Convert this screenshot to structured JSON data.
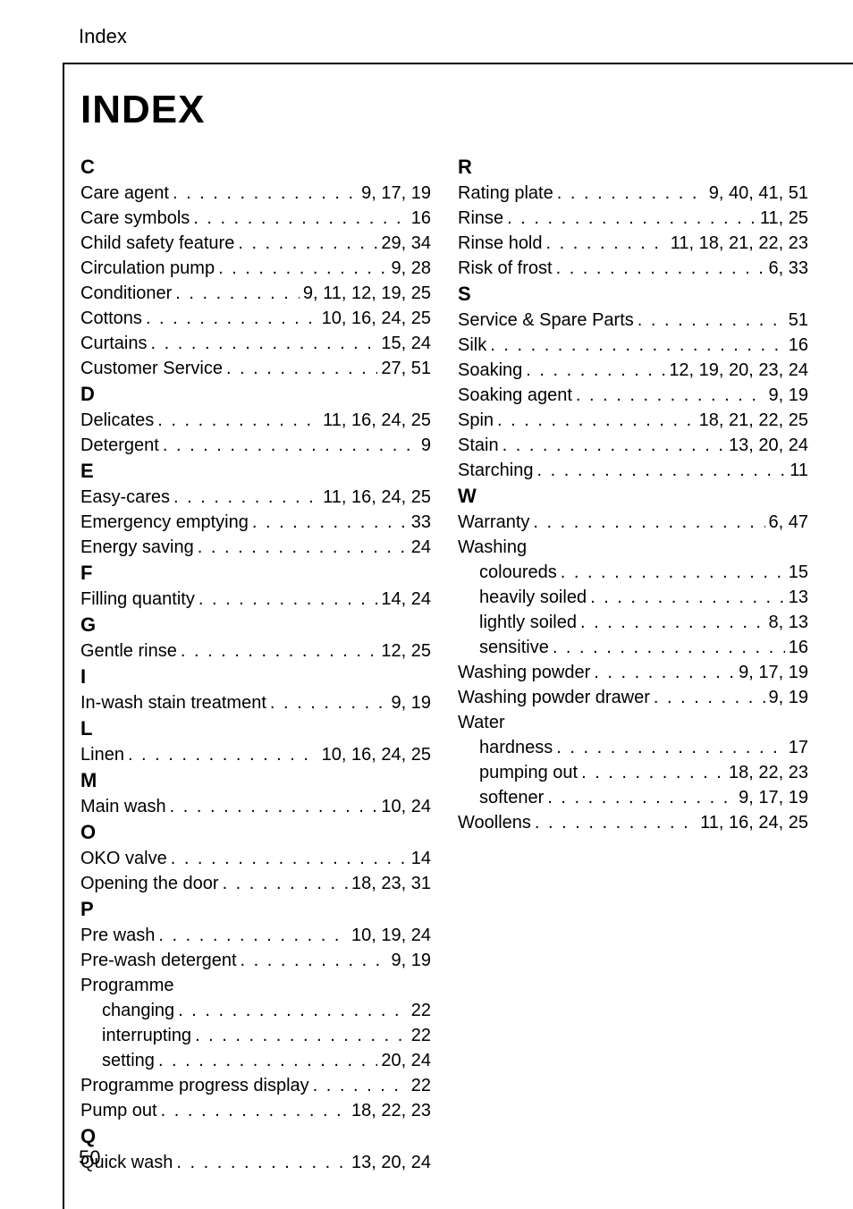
{
  "running_head": "Index",
  "title": "INDEX",
  "page_number": "50",
  "columns": [
    {
      "groups": [
        {
          "letter": "C",
          "entries": [
            {
              "label": "Care agent",
              "pages": "9, 17, 19"
            },
            {
              "label": "Care symbols",
              "pages": "16"
            },
            {
              "label": "Child safety feature",
              "pages": "29, 34"
            },
            {
              "label": "Circulation pump",
              "pages": "9, 28"
            },
            {
              "label": "Conditioner",
              "pages": "9, 11, 12, 19, 25"
            },
            {
              "label": "Cottons",
              "pages": "10, 16, 24, 25"
            },
            {
              "label": "Curtains",
              "pages": "15, 24"
            },
            {
              "label": "Customer Service",
              "pages": "27, 51"
            }
          ]
        },
        {
          "letter": "D",
          "entries": [
            {
              "label": "Delicates",
              "pages": "11, 16, 24, 25"
            },
            {
              "label": "Detergent",
              "pages": "9"
            }
          ]
        },
        {
          "letter": "E",
          "entries": [
            {
              "label": "Easy-cares",
              "pages": "11, 16, 24, 25"
            },
            {
              "label": "Emergency emptying",
              "pages": "33"
            },
            {
              "label": "Energy saving",
              "pages": "24"
            }
          ]
        },
        {
          "letter": "F",
          "entries": [
            {
              "label": "Filling quantity",
              "pages": "14, 24"
            }
          ]
        },
        {
          "letter": "G",
          "entries": [
            {
              "label": "Gentle rinse",
              "pages": "12, 25"
            }
          ]
        },
        {
          "letter": "I",
          "entries": [
            {
              "label": "In-wash stain treatment",
              "pages": "9, 19"
            }
          ]
        },
        {
          "letter": "L",
          "entries": [
            {
              "label": "Linen",
              "pages": "10, 16, 24, 25"
            }
          ]
        },
        {
          "letter": "M",
          "entries": [
            {
              "label": "Main wash",
              "pages": "10, 24"
            }
          ]
        },
        {
          "letter": "O",
          "entries": [
            {
              "label": "OKO valve",
              "pages": "14"
            },
            {
              "label": "Opening the door",
              "pages": "18, 23, 31"
            }
          ]
        },
        {
          "letter": "P",
          "entries": [
            {
              "label": "Pre wash",
              "pages": "10, 19, 24"
            },
            {
              "label": "Pre-wash detergent",
              "pages": "9, 19"
            },
            {
              "label": "Programme",
              "pages": "",
              "heading_only": true
            },
            {
              "label": "changing",
              "pages": "22",
              "sub": true
            },
            {
              "label": "interrupting",
              "pages": "22",
              "sub": true
            },
            {
              "label": "setting",
              "pages": "20, 24",
              "sub": true
            },
            {
              "label": "Programme progress display",
              "pages": "22"
            },
            {
              "label": "Pump out",
              "pages": "18, 22, 23"
            }
          ]
        },
        {
          "letter": "Q",
          "entries": [
            {
              "label": "Quick wash",
              "pages": "13, 20, 24"
            }
          ]
        }
      ]
    },
    {
      "groups": [
        {
          "letter": "R",
          "entries": [
            {
              "label": "Rating plate",
              "pages": "9, 40, 41, 51"
            },
            {
              "label": "Rinse",
              "pages": "11, 25"
            },
            {
              "label": "Rinse hold",
              "pages": "11, 18, 21, 22, 23"
            },
            {
              "label": "Risk of frost",
              "pages": "6, 33"
            }
          ]
        },
        {
          "letter": "S",
          "entries": [
            {
              "label": "Service & Spare Parts",
              "pages": "51"
            },
            {
              "label": "Silk",
              "pages": "16"
            },
            {
              "label": "Soaking",
              "pages": "12, 19, 20, 23, 24"
            },
            {
              "label": "Soaking agent",
              "pages": "9, 19"
            },
            {
              "label": "Spin",
              "pages": "18, 21, 22, 25"
            },
            {
              "label": "Stain",
              "pages": "13, 20, 24"
            },
            {
              "label": "Starching",
              "pages": "11"
            }
          ]
        },
        {
          "letter": "W",
          "entries": [
            {
              "label": "Warranty",
              "pages": "6, 47"
            },
            {
              "label": "Washing",
              "pages": "",
              "heading_only": true
            },
            {
              "label": "coloureds",
              "pages": "15",
              "sub": true
            },
            {
              "label": "heavily soiled",
              "pages": "13",
              "sub": true
            },
            {
              "label": "lightly soiled",
              "pages": "8, 13",
              "sub": true
            },
            {
              "label": "sensitive",
              "pages": "16",
              "sub": true
            },
            {
              "label": "Washing powder",
              "pages": "9, 17, 19"
            },
            {
              "label": "Washing powder drawer",
              "pages": "9, 19"
            },
            {
              "label": "Water",
              "pages": "",
              "heading_only": true
            },
            {
              "label": "hardness",
              "pages": "17",
              "sub": true
            },
            {
              "label": "pumping out",
              "pages": "18, 22, 23",
              "sub": true
            },
            {
              "label": "softener",
              "pages": "9, 17, 19",
              "sub": true
            },
            {
              "label": "Woollens",
              "pages": "11, 16, 24, 25"
            }
          ]
        }
      ]
    }
  ]
}
